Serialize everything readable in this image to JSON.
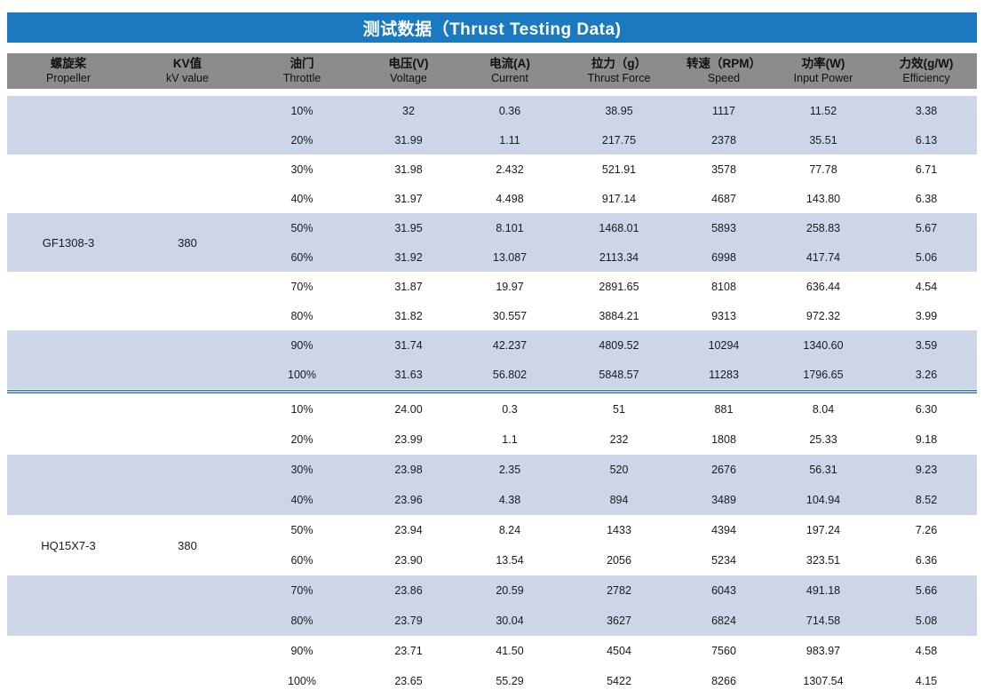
{
  "chart_data": {
    "type": "table",
    "title": "测试数据（Thrust Testing Data)",
    "columns": [
      {
        "zh": "螺旋桨",
        "en": "Propeller"
      },
      {
        "zh": "KV值",
        "en": "kV value"
      },
      {
        "zh": "油门",
        "en": "Throttle"
      },
      {
        "zh": "电压(V)",
        "en": "Voltage"
      },
      {
        "zh": "电流(A)",
        "en": "Current"
      },
      {
        "zh": "拉力（g）",
        "en": "Thrust Force"
      },
      {
        "zh": "转速（RPM）",
        "en": "Speed"
      },
      {
        "zh": "功率(W)",
        "en": "Input Power"
      },
      {
        "zh": "力效(g/W)",
        "en": "Efficiency"
      }
    ],
    "sections": [
      {
        "propeller": "GF1308-3",
        "kv_value": "380",
        "rows": [
          [
            "10%",
            "32",
            "0.36",
            "38.95",
            "1117",
            "11.52",
            "3.38"
          ],
          [
            "20%",
            "31.99",
            "1.11",
            "217.75",
            "2378",
            "35.51",
            "6.13"
          ],
          [
            "30%",
            "31.98",
            "2.432",
            "521.91",
            "3578",
            "77.78",
            "6.71"
          ],
          [
            "40%",
            "31.97",
            "4.498",
            "917.14",
            "4687",
            "143.80",
            "6.38"
          ],
          [
            "50%",
            "31.95",
            "8.101",
            "1468.01",
            "5893",
            "258.83",
            "5.67"
          ],
          [
            "60%",
            "31.92",
            "13.087",
            "2113.34",
            "6998",
            "417.74",
            "5.06"
          ],
          [
            "70%",
            "31.87",
            "19.97",
            "2891.65",
            "8108",
            "636.44",
            "4.54"
          ],
          [
            "80%",
            "31.82",
            "30.557",
            "3884.21",
            "9313",
            "972.32",
            "3.99"
          ],
          [
            "90%",
            "31.74",
            "42.237",
            "4809.52",
            "10294",
            "1340.60",
            "3.59"
          ],
          [
            "100%",
            "31.63",
            "56.802",
            "5848.57",
            "11283",
            "1796.65",
            "3.26"
          ]
        ]
      },
      {
        "propeller": "HQ15X7-3",
        "kv_value": "380",
        "rows": [
          [
            "10%",
            "24.00",
            "0.3",
            "51",
            "881",
            "8.04",
            "6.30"
          ],
          [
            "20%",
            "23.99",
            "1.1",
            "232",
            "1808",
            "25.33",
            "9.18"
          ],
          [
            "30%",
            "23.98",
            "2.35",
            "520",
            "2676",
            "56.31",
            "9.23"
          ],
          [
            "40%",
            "23.96",
            "4.38",
            "894",
            "3489",
            "104.94",
            "8.52"
          ],
          [
            "50%",
            "23.94",
            "8.24",
            "1433",
            "4394",
            "197.24",
            "7.26"
          ],
          [
            "60%",
            "23.90",
            "13.54",
            "2056",
            "5234",
            "323.51",
            "6.36"
          ],
          [
            "70%",
            "23.86",
            "20.59",
            "2782",
            "6043",
            "491.18",
            "5.66"
          ],
          [
            "80%",
            "23.79",
            "30.04",
            "3627",
            "6824",
            "714.58",
            "5.08"
          ],
          [
            "90%",
            "23.71",
            "41.50",
            "4504",
            "7560",
            "983.97",
            "4.58"
          ],
          [
            "100%",
            "23.65",
            "55.29",
            "5422",
            "8266",
            "1307.54",
            "4.15"
          ]
        ]
      }
    ],
    "band_pattern": "rows shaded in alternating two-row bands starting with blue at the first data row, continuing across both sections",
    "colors": {
      "title_bg": "#1B79C0",
      "header_bg": "#8C8C8C",
      "band_bg": "#CCD6E8",
      "divider_blue": "#2E74B5",
      "text": "#1A1A1A"
    }
  }
}
